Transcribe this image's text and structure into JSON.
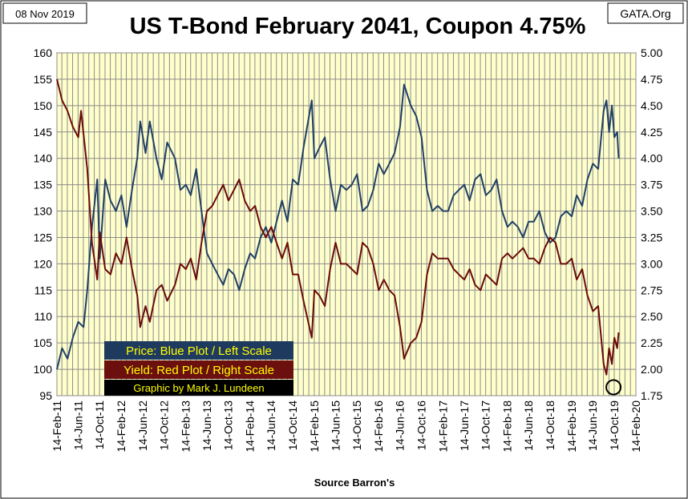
{
  "header": {
    "date": "08 Nov 2019",
    "title": "US T-Bond February 2041, Coupon 4.75%",
    "credit": "GATA.Org"
  },
  "footer": {
    "source": "Source Barron's"
  },
  "legend": [
    {
      "text": "Price:  Blue Plot / Left Scale",
      "bg": "#1f3a5f",
      "fg": "#ffff00"
    },
    {
      "text": "Yield:  Red Plot / Right Scale",
      "bg": "#6b0f0f",
      "fg": "#ffff00"
    },
    {
      "text": "Graphic by Mark J. Lundeen",
      "bg": "#000000",
      "fg": "#ffff00"
    }
  ],
  "colors": {
    "plot_bg": "#ffffcc",
    "grid": "#8c8c8c",
    "price": "#1f3f66",
    "yield": "#6b0a0a"
  },
  "chart_data": {
    "type": "line",
    "title": "US T-Bond February 2041, Coupon 4.75%",
    "xlabel": "Source Barron's",
    "x_ticks": [
      "14-Feb-11",
      "14-Jun-11",
      "14-Oct-11",
      "14-Feb-12",
      "14-Jun-12",
      "14-Oct-12",
      "14-Feb-13",
      "14-Jun-13",
      "14-Oct-13",
      "14-Feb-14",
      "14-Jun-14",
      "14-Oct-14",
      "14-Feb-15",
      "14-Jun-15",
      "14-Oct-15",
      "14-Feb-16",
      "14-Jun-16",
      "14-Oct-16",
      "14-Feb-17",
      "14-Jun-17",
      "14-Oct-17",
      "14-Feb-18",
      "14-Jun-18",
      "14-Oct-18",
      "14-Feb-19",
      "14-Jun-19",
      "14-Oct-19",
      "14-Feb-20"
    ],
    "xlim": [
      "2011-02-14",
      "2020-02-14"
    ],
    "y_left": {
      "ylim": [
        95,
        160
      ],
      "ticks": [
        "95",
        "100",
        "105",
        "110",
        "115",
        "120",
        "125",
        "130",
        "135",
        "140",
        "145",
        "150",
        "155",
        "160"
      ]
    },
    "y_right": {
      "ylim": [
        1.75,
        5.0
      ],
      "ticks": [
        "1.75",
        "2.00",
        "2.25",
        "2.50",
        "2.75",
        "3.00",
        "3.25",
        "3.50",
        "3.75",
        "4.00",
        "4.25",
        "4.50",
        "4.75",
        "5.00"
      ]
    },
    "grid": true,
    "legend_position": "bottom-left",
    "annotation": "circle marking yield low, early Oct 2019",
    "series": [
      {
        "name": "Price",
        "axis": "left",
        "color": "#1f3f66",
        "points": [
          [
            "2011-02-14",
            100
          ],
          [
            "2011-03-15",
            104
          ],
          [
            "2011-04-15",
            102
          ],
          [
            "2011-05-15",
            106
          ],
          [
            "2011-06-15",
            109
          ],
          [
            "2011-07-15",
            108
          ],
          [
            "2011-08-05",
            115
          ],
          [
            "2011-09-01",
            127
          ],
          [
            "2011-10-01",
            136
          ],
          [
            "2011-10-15",
            121
          ],
          [
            "2011-11-15",
            136
          ],
          [
            "2011-12-15",
            132
          ],
          [
            "2012-01-15",
            130
          ],
          [
            "2012-02-15",
            133
          ],
          [
            "2012-03-15",
            127
          ],
          [
            "2012-04-15",
            134
          ],
          [
            "2012-05-15",
            140
          ],
          [
            "2012-06-01",
            147
          ],
          [
            "2012-07-01",
            141
          ],
          [
            "2012-07-25",
            147
          ],
          [
            "2012-09-01",
            140
          ],
          [
            "2012-10-01",
            136
          ],
          [
            "2012-11-01",
            143
          ],
          [
            "2012-12-15",
            140
          ],
          [
            "2013-01-15",
            134
          ],
          [
            "2013-02-15",
            135
          ],
          [
            "2013-03-15",
            133
          ],
          [
            "2013-04-15",
            138
          ],
          [
            "2013-05-15",
            130
          ],
          [
            "2013-06-15",
            122
          ],
          [
            "2013-07-15",
            120
          ],
          [
            "2013-08-15",
            118
          ],
          [
            "2013-09-15",
            116
          ],
          [
            "2013-10-15",
            119
          ],
          [
            "2013-11-15",
            118
          ],
          [
            "2013-12-15",
            115
          ],
          [
            "2014-01-15",
            119
          ],
          [
            "2014-02-15",
            122
          ],
          [
            "2014-03-15",
            121
          ],
          [
            "2014-04-15",
            125
          ],
          [
            "2014-05-15",
            127
          ],
          [
            "2014-06-15",
            124
          ],
          [
            "2014-07-15",
            128
          ],
          [
            "2014-08-15",
            132
          ],
          [
            "2014-09-15",
            128
          ],
          [
            "2014-10-15",
            136
          ],
          [
            "2014-11-15",
            135
          ],
          [
            "2014-12-15",
            142
          ],
          [
            "2015-01-31",
            151
          ],
          [
            "2015-02-15",
            140
          ],
          [
            "2015-03-15",
            142
          ],
          [
            "2015-04-15",
            144
          ],
          [
            "2015-05-15",
            136
          ],
          [
            "2015-06-15",
            130
          ],
          [
            "2015-07-15",
            135
          ],
          [
            "2015-08-15",
            134
          ],
          [
            "2015-09-15",
            135
          ],
          [
            "2015-10-15",
            137
          ],
          [
            "2015-11-15",
            130
          ],
          [
            "2015-12-15",
            131
          ],
          [
            "2016-01-15",
            134
          ],
          [
            "2016-02-15",
            139
          ],
          [
            "2016-03-15",
            137
          ],
          [
            "2016-04-15",
            139
          ],
          [
            "2016-05-15",
            141
          ],
          [
            "2016-06-15",
            146
          ],
          [
            "2016-07-08",
            154
          ],
          [
            "2016-08-15",
            150
          ],
          [
            "2016-09-15",
            148
          ],
          [
            "2016-10-15",
            144
          ],
          [
            "2016-11-15",
            134
          ],
          [
            "2016-12-15",
            130
          ],
          [
            "2017-01-15",
            131
          ],
          [
            "2017-02-15",
            130
          ],
          [
            "2017-03-15",
            130
          ],
          [
            "2017-04-15",
            133
          ],
          [
            "2017-05-15",
            134
          ],
          [
            "2017-06-15",
            135
          ],
          [
            "2017-07-15",
            132
          ],
          [
            "2017-08-15",
            136
          ],
          [
            "2017-09-15",
            137
          ],
          [
            "2017-10-15",
            133
          ],
          [
            "2017-11-15",
            134
          ],
          [
            "2017-12-15",
            136
          ],
          [
            "2018-01-15",
            130
          ],
          [
            "2018-02-15",
            127
          ],
          [
            "2018-03-15",
            128
          ],
          [
            "2018-04-15",
            127
          ],
          [
            "2018-05-15",
            125
          ],
          [
            "2018-06-15",
            128
          ],
          [
            "2018-07-15",
            128
          ],
          [
            "2018-08-15",
            130
          ],
          [
            "2018-09-15",
            126
          ],
          [
            "2018-10-15",
            124
          ],
          [
            "2018-11-15",
            125
          ],
          [
            "2018-12-15",
            129
          ],
          [
            "2019-01-15",
            130
          ],
          [
            "2019-02-15",
            129
          ],
          [
            "2019-03-15",
            133
          ],
          [
            "2019-04-15",
            131
          ],
          [
            "2019-05-15",
            136
          ],
          [
            "2019-06-15",
            139
          ],
          [
            "2019-07-15",
            138
          ],
          [
            "2019-08-15",
            149
          ],
          [
            "2019-08-31",
            151
          ],
          [
            "2019-09-15",
            145
          ],
          [
            "2019-10-01",
            150
          ],
          [
            "2019-10-15",
            144
          ],
          [
            "2019-10-31",
            145
          ],
          [
            "2019-11-08",
            140
          ]
        ]
      },
      {
        "name": "Yield",
        "axis": "right",
        "color": "#6b0a0a",
        "points": [
          [
            "2011-02-14",
            4.75
          ],
          [
            "2011-03-15",
            4.55
          ],
          [
            "2011-04-15",
            4.45
          ],
          [
            "2011-05-15",
            4.3
          ],
          [
            "2011-06-15",
            4.2
          ],
          [
            "2011-07-01",
            4.45
          ],
          [
            "2011-08-05",
            3.9
          ],
          [
            "2011-09-01",
            3.2
          ],
          [
            "2011-10-01",
            2.85
          ],
          [
            "2011-10-15",
            3.3
          ],
          [
            "2011-11-15",
            2.95
          ],
          [
            "2011-12-15",
            2.9
          ],
          [
            "2012-01-15",
            3.1
          ],
          [
            "2012-02-15",
            3.0
          ],
          [
            "2012-03-15",
            3.25
          ],
          [
            "2012-04-15",
            2.95
          ],
          [
            "2012-05-15",
            2.7
          ],
          [
            "2012-06-01",
            2.4
          ],
          [
            "2012-07-01",
            2.6
          ],
          [
            "2012-07-25",
            2.45
          ],
          [
            "2012-09-01",
            2.75
          ],
          [
            "2012-10-01",
            2.8
          ],
          [
            "2012-11-01",
            2.65
          ],
          [
            "2012-12-15",
            2.8
          ],
          [
            "2013-01-15",
            3.0
          ],
          [
            "2013-02-15",
            2.95
          ],
          [
            "2013-03-15",
            3.05
          ],
          [
            "2013-04-15",
            2.85
          ],
          [
            "2013-05-15",
            3.2
          ],
          [
            "2013-06-15",
            3.5
          ],
          [
            "2013-07-15",
            3.55
          ],
          [
            "2013-08-15",
            3.65
          ],
          [
            "2013-09-15",
            3.75
          ],
          [
            "2013-10-15",
            3.6
          ],
          [
            "2013-11-15",
            3.7
          ],
          [
            "2013-12-15",
            3.8
          ],
          [
            "2014-01-15",
            3.6
          ],
          [
            "2014-02-15",
            3.5
          ],
          [
            "2014-03-15",
            3.55
          ],
          [
            "2014-04-15",
            3.35
          ],
          [
            "2014-05-15",
            3.25
          ],
          [
            "2014-06-15",
            3.35
          ],
          [
            "2014-07-15",
            3.2
          ],
          [
            "2014-08-15",
            3.05
          ],
          [
            "2014-09-15",
            3.2
          ],
          [
            "2014-10-15",
            2.9
          ],
          [
            "2014-11-15",
            2.9
          ],
          [
            "2014-12-15",
            2.65
          ],
          [
            "2015-01-31",
            2.3
          ],
          [
            "2015-02-15",
            2.75
          ],
          [
            "2015-03-15",
            2.7
          ],
          [
            "2015-04-15",
            2.6
          ],
          [
            "2015-05-15",
            2.95
          ],
          [
            "2015-06-15",
            3.2
          ],
          [
            "2015-07-15",
            3.0
          ],
          [
            "2015-08-15",
            3.0
          ],
          [
            "2015-09-15",
            2.95
          ],
          [
            "2015-10-15",
            2.9
          ],
          [
            "2015-11-15",
            3.2
          ],
          [
            "2015-12-15",
            3.15
          ],
          [
            "2016-01-15",
            3.0
          ],
          [
            "2016-02-15",
            2.75
          ],
          [
            "2016-03-15",
            2.85
          ],
          [
            "2016-04-15",
            2.75
          ],
          [
            "2016-05-15",
            2.7
          ],
          [
            "2016-06-15",
            2.4
          ],
          [
            "2016-07-08",
            2.1
          ],
          [
            "2016-08-15",
            2.25
          ],
          [
            "2016-09-15",
            2.3
          ],
          [
            "2016-10-15",
            2.45
          ],
          [
            "2016-11-15",
            2.9
          ],
          [
            "2016-12-15",
            3.1
          ],
          [
            "2017-01-15",
            3.05
          ],
          [
            "2017-02-15",
            3.05
          ],
          [
            "2017-03-15",
            3.05
          ],
          [
            "2017-04-15",
            2.95
          ],
          [
            "2017-05-15",
            2.9
          ],
          [
            "2017-06-15",
            2.85
          ],
          [
            "2017-07-15",
            2.95
          ],
          [
            "2017-08-15",
            2.8
          ],
          [
            "2017-09-15",
            2.75
          ],
          [
            "2017-10-15",
            2.9
          ],
          [
            "2017-11-15",
            2.85
          ],
          [
            "2017-12-15",
            2.8
          ],
          [
            "2018-01-15",
            3.05
          ],
          [
            "2018-02-15",
            3.1
          ],
          [
            "2018-03-15",
            3.05
          ],
          [
            "2018-04-15",
            3.1
          ],
          [
            "2018-05-15",
            3.15
          ],
          [
            "2018-06-15",
            3.05
          ],
          [
            "2018-07-15",
            3.05
          ],
          [
            "2018-08-15",
            3.0
          ],
          [
            "2018-09-15",
            3.15
          ],
          [
            "2018-10-15",
            3.25
          ],
          [
            "2018-11-15",
            3.2
          ],
          [
            "2018-12-15",
            3.0
          ],
          [
            "2019-01-15",
            3.0
          ],
          [
            "2019-02-15",
            3.05
          ],
          [
            "2019-03-15",
            2.85
          ],
          [
            "2019-04-15",
            2.95
          ],
          [
            "2019-05-15",
            2.7
          ],
          [
            "2019-06-15",
            2.55
          ],
          [
            "2019-07-15",
            2.6
          ],
          [
            "2019-08-15",
            2.05
          ],
          [
            "2019-08-31",
            1.95
          ],
          [
            "2019-09-15",
            2.2
          ],
          [
            "2019-10-01",
            2.05
          ],
          [
            "2019-10-15",
            2.3
          ],
          [
            "2019-10-31",
            2.2
          ],
          [
            "2019-11-08",
            2.35
          ]
        ]
      }
    ]
  }
}
